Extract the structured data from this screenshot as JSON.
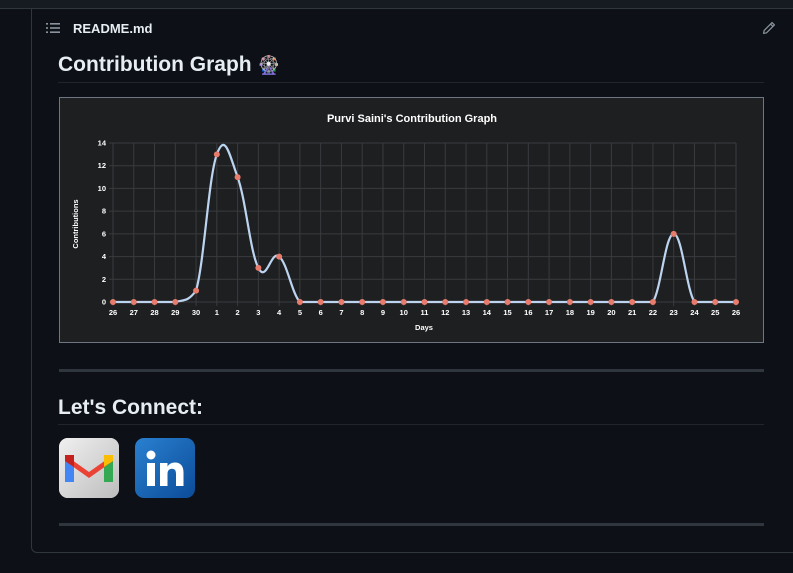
{
  "readme": {
    "file_name": "README.md"
  },
  "contribution": {
    "heading": "Contribution Graph",
    "emoji": "🎡"
  },
  "connect": {
    "heading": "Let's Connect:",
    "links": [
      {
        "name": "gmail",
        "icon": "gmail-icon"
      },
      {
        "name": "linkedin",
        "icon": "linkedin-icon"
      }
    ]
  },
  "colors": {
    "line": "#bcd4f0",
    "points": "#e87c6c",
    "chart_bg": "#1e1f21",
    "grid": "#3a3b3e",
    "page_bg": "#0d1117"
  },
  "chart_data": {
    "type": "line",
    "title": "Purvi Saini's Contribution Graph",
    "xlabel": "Days",
    "ylabel": "Contributions",
    "ylim": [
      0,
      14
    ],
    "yticks": [
      "0",
      "2",
      "4",
      "6",
      "8",
      "10",
      "12",
      "14"
    ],
    "categories": [
      "26",
      "27",
      "28",
      "29",
      "30",
      "1",
      "2",
      "3",
      "4",
      "5",
      "6",
      "7",
      "8",
      "9",
      "10",
      "11",
      "12",
      "13",
      "14",
      "15",
      "16",
      "17",
      "18",
      "19",
      "20",
      "21",
      "22",
      "23",
      "24",
      "25",
      "26"
    ],
    "series": [
      {
        "values": [
          0,
          0,
          0,
          0,
          1,
          13,
          11,
          3,
          4,
          0,
          0,
          0,
          0,
          0,
          0,
          0,
          0,
          0,
          0,
          0,
          0,
          0,
          0,
          0,
          0,
          0,
          0,
          6,
          0,
          0,
          0
        ]
      }
    ],
    "grid": true,
    "legend": "none"
  }
}
